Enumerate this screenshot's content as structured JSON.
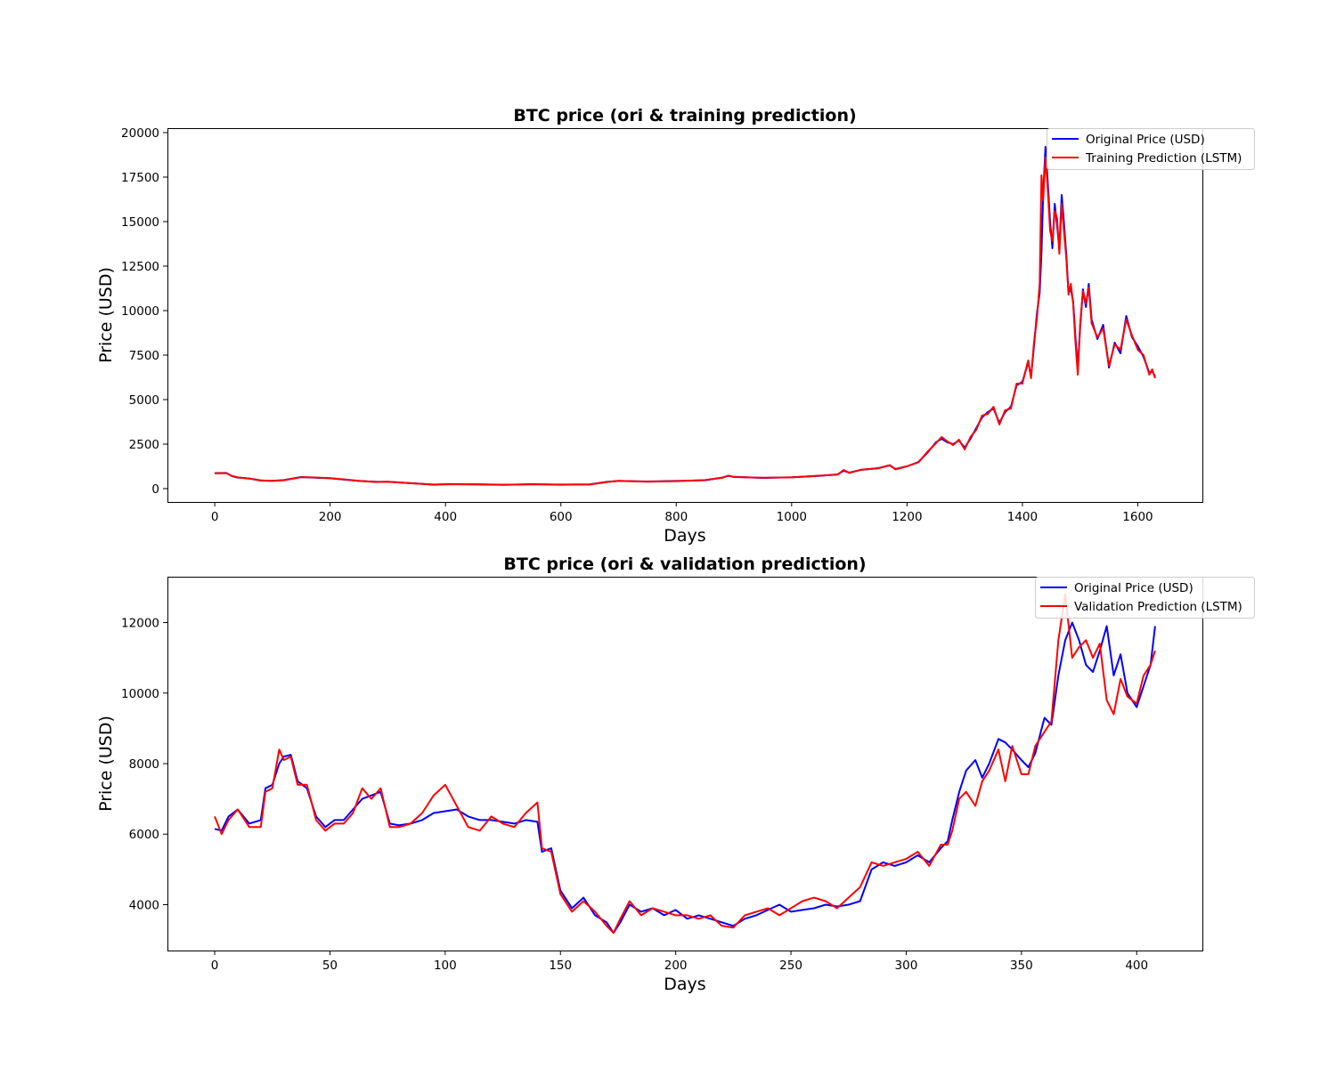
{
  "colors": {
    "original": "#0000ff",
    "prediction": "#ff0000"
  },
  "chart_data": [
    {
      "type": "line",
      "title": "BTC price (ori & training prediction)",
      "xlabel": "Days",
      "ylabel": "Price (USD)",
      "xlim": [
        -82,
        1712
      ],
      "ylim": [
        -750,
        20250
      ],
      "xticks": [
        0,
        200,
        400,
        600,
        800,
        1000,
        1200,
        1400,
        1600
      ],
      "yticks": [
        0,
        2500,
        5000,
        7500,
        10000,
        12500,
        15000,
        17500,
        20000
      ],
      "legend_position": "upper-right",
      "grid": false,
      "series": [
        {
          "name": "Original Price (USD)",
          "color": "#0000ff",
          "x": [
            0,
            20,
            30,
            40,
            60,
            80,
            100,
            120,
            150,
            170,
            200,
            250,
            280,
            300,
            350,
            380,
            400,
            450,
            500,
            550,
            600,
            650,
            680,
            700,
            750,
            800,
            850,
            880,
            890,
            900,
            950,
            1000,
            1050,
            1080,
            1090,
            1100,
            1120,
            1150,
            1170,
            1180,
            1200,
            1220,
            1235,
            1250,
            1260,
            1270,
            1280,
            1290,
            1300,
            1310,
            1320,
            1330,
            1340,
            1350,
            1360,
            1370,
            1380,
            1390,
            1400,
            1410,
            1415,
            1420,
            1425,
            1430,
            1433,
            1436,
            1440,
            1444,
            1448,
            1452,
            1456,
            1460,
            1464,
            1468,
            1472,
            1476,
            1480,
            1484,
            1488,
            1492,
            1496,
            1500,
            1505,
            1510,
            1515,
            1520,
            1530,
            1540,
            1550,
            1560,
            1570,
            1580,
            1590,
            1600,
            1610,
            1620,
            1625,
            1630
          ],
          "y": [
            870,
            880,
            700,
            620,
            570,
            450,
            440,
            480,
            650,
            620,
            580,
            430,
            380,
            380,
            290,
            220,
            250,
            240,
            210,
            250,
            220,
            240,
            380,
            430,
            400,
            430,
            470,
            620,
            720,
            660,
            600,
            640,
            720,
            800,
            1000,
            900,
            1050,
            1150,
            1300,
            1100,
            1250,
            1500,
            2000,
            2600,
            2800,
            2600,
            2500,
            2700,
            2300,
            2800,
            3400,
            4000,
            4300,
            4500,
            3700,
            4300,
            4600,
            5800,
            6000,
            7100,
            6300,
            8000,
            9800,
            11000,
            13200,
            16500,
            19200,
            17200,
            15000,
            13500,
            16000,
            14800,
            13500,
            16500,
            15000,
            13200,
            11000,
            11200,
            10500,
            8500,
            6800,
            9000,
            11200,
            10200,
            11500,
            9500,
            8400,
            9200,
            6800,
            8200,
            7600,
            9700,
            8500,
            8000,
            7400,
            6500,
            6600,
            6300
          ]
        },
        {
          "name": "Training Prediction (LSTM)",
          "color": "#ff0000",
          "x": [
            0,
            20,
            30,
            40,
            60,
            80,
            100,
            120,
            150,
            170,
            200,
            250,
            280,
            300,
            350,
            380,
            400,
            450,
            500,
            550,
            600,
            650,
            680,
            700,
            750,
            800,
            850,
            880,
            890,
            900,
            950,
            1000,
            1050,
            1080,
            1090,
            1100,
            1120,
            1150,
            1170,
            1180,
            1200,
            1220,
            1235,
            1250,
            1260,
            1270,
            1280,
            1290,
            1300,
            1310,
            1320,
            1330,
            1340,
            1350,
            1360,
            1370,
            1380,
            1390,
            1400,
            1410,
            1415,
            1420,
            1425,
            1430,
            1433,
            1436,
            1440,
            1444,
            1448,
            1452,
            1456,
            1460,
            1464,
            1468,
            1472,
            1476,
            1480,
            1484,
            1488,
            1492,
            1496,
            1500,
            1505,
            1510,
            1515,
            1520,
            1530,
            1540,
            1550,
            1560,
            1570,
            1580,
            1590,
            1600,
            1610,
            1620,
            1625,
            1630
          ],
          "y": [
            860,
            870,
            710,
            630,
            560,
            460,
            430,
            470,
            640,
            630,
            590,
            440,
            370,
            390,
            280,
            230,
            240,
            250,
            220,
            240,
            230,
            230,
            370,
            440,
            390,
            420,
            480,
            610,
            730,
            650,
            610,
            630,
            730,
            790,
            1050,
            880,
            1060,
            1140,
            1320,
            1080,
            1260,
            1480,
            2050,
            2550,
            2900,
            2650,
            2450,
            2750,
            2200,
            2900,
            3300,
            4100,
            4200,
            4600,
            3600,
            4400,
            4500,
            5900,
            5900,
            7200,
            6200,
            8200,
            9500,
            11500,
            17600,
            16200,
            18600,
            16800,
            14500,
            13900,
            15600,
            15200,
            13200,
            16000,
            14500,
            13000,
            10900,
            11500,
            10400,
            8200,
            6400,
            9200,
            11100,
            10400,
            11300,
            9300,
            8500,
            9000,
            6900,
            8100,
            7800,
            9500,
            8600,
            7800,
            7500,
            6400,
            6700,
            6200
          ]
        }
      ]
    },
    {
      "type": "line",
      "title": "BTC price (ori & validation prediction)",
      "xlabel": "Days",
      "ylabel": "Price (USD)",
      "xlim": [
        -20.5,
        428.5
      ],
      "ylim": [
        2700,
        13300
      ],
      "xticks": [
        0,
        50,
        100,
        150,
        200,
        250,
        300,
        350,
        400
      ],
      "yticks": [
        4000,
        6000,
        8000,
        10000,
        12000
      ],
      "legend_position": "upper-right",
      "grid": false,
      "series": [
        {
          "name": "Original Price (USD)",
          "color": "#0000ff",
          "x": [
            0,
            3,
            6,
            10,
            15,
            20,
            22,
            25,
            28,
            30,
            33,
            36,
            40,
            44,
            48,
            52,
            56,
            60,
            64,
            68,
            72,
            76,
            80,
            85,
            90,
            95,
            100,
            105,
            110,
            115,
            120,
            125,
            130,
            135,
            140,
            142,
            146,
            150,
            155,
            160,
            165,
            170,
            173,
            176,
            180,
            185,
            190,
            195,
            200,
            205,
            210,
            215,
            220,
            225,
            230,
            235,
            240,
            245,
            250,
            255,
            260,
            265,
            270,
            275,
            280,
            285,
            290,
            295,
            300,
            305,
            310,
            315,
            318,
            320,
            323,
            326,
            330,
            333,
            336,
            340,
            343,
            346,
            350,
            353,
            356,
            360,
            363,
            366,
            369,
            372,
            375,
            378,
            381,
            384,
            387,
            390,
            393,
            396,
            400,
            403,
            406,
            408
          ],
          "y": [
            6150,
            6100,
            6500,
            6700,
            6300,
            6400,
            7300,
            7400,
            8000,
            8200,
            8250,
            7500,
            7300,
            6500,
            6200,
            6400,
            6400,
            6700,
            7000,
            7100,
            7200,
            6300,
            6250,
            6300,
            6400,
            6600,
            6650,
            6700,
            6500,
            6400,
            6400,
            6350,
            6300,
            6400,
            6350,
            5500,
            5600,
            4400,
            3900,
            4200,
            3700,
            3500,
            3200,
            3500,
            4000,
            3800,
            3900,
            3700,
            3850,
            3600,
            3700,
            3600,
            3500,
            3400,
            3600,
            3700,
            3850,
            4000,
            3800,
            3850,
            3900,
            4000,
            3950,
            4000,
            4100,
            5000,
            5200,
            5100,
            5200,
            5400,
            5200,
            5600,
            5800,
            6400,
            7200,
            7800,
            8100,
            7600,
            8000,
            8700,
            8600,
            8400,
            8100,
            7900,
            8300,
            9300,
            9100,
            10500,
            11500,
            12000,
            11500,
            10800,
            10600,
            11200,
            11900,
            10500,
            11100,
            10000,
            9600,
            10200,
            10800,
            11900
          ]
        },
        {
          "name": "Validation Prediction (LSTM)",
          "color": "#ff0000",
          "x": [
            0,
            3,
            6,
            10,
            15,
            20,
            22,
            25,
            28,
            30,
            33,
            36,
            40,
            44,
            48,
            52,
            56,
            60,
            64,
            68,
            72,
            76,
            80,
            85,
            90,
            95,
            100,
            105,
            110,
            115,
            120,
            125,
            130,
            135,
            140,
            142,
            146,
            150,
            155,
            160,
            165,
            170,
            173,
            176,
            180,
            185,
            190,
            195,
            200,
            205,
            210,
            215,
            220,
            225,
            230,
            235,
            240,
            245,
            250,
            255,
            260,
            265,
            270,
            275,
            280,
            285,
            290,
            295,
            300,
            305,
            310,
            315,
            318,
            320,
            323,
            326,
            330,
            333,
            336,
            340,
            343,
            346,
            350,
            353,
            356,
            360,
            363,
            366,
            369,
            372,
            375,
            378,
            381,
            384,
            387,
            390,
            393,
            396,
            400,
            403,
            406,
            408
          ],
          "y": [
            6500,
            6000,
            6400,
            6700,
            6200,
            6200,
            7200,
            7300,
            8400,
            8100,
            8200,
            7400,
            7400,
            6400,
            6100,
            6300,
            6300,
            6600,
            7300,
            7000,
            7300,
            6200,
            6200,
            6300,
            6600,
            7100,
            7400,
            6800,
            6200,
            6100,
            6500,
            6300,
            6200,
            6600,
            6900,
            5600,
            5500,
            4300,
            3800,
            4100,
            3800,
            3400,
            3200,
            3600,
            4100,
            3700,
            3900,
            3800,
            3700,
            3700,
            3600,
            3700,
            3400,
            3350,
            3700,
            3800,
            3900,
            3700,
            3900,
            4100,
            4200,
            4100,
            3900,
            4200,
            4500,
            5200,
            5100,
            5200,
            5300,
            5500,
            5100,
            5700,
            5700,
            6100,
            7000,
            7200,
            6800,
            7500,
            7800,
            8400,
            7500,
            8500,
            7700,
            7700,
            8500,
            8900,
            9200,
            11500,
            12800,
            11000,
            11300,
            11500,
            11000,
            11400,
            9800,
            9400,
            10400,
            9900,
            9700,
            10500,
            10800,
            11200
          ]
        }
      ]
    }
  ]
}
